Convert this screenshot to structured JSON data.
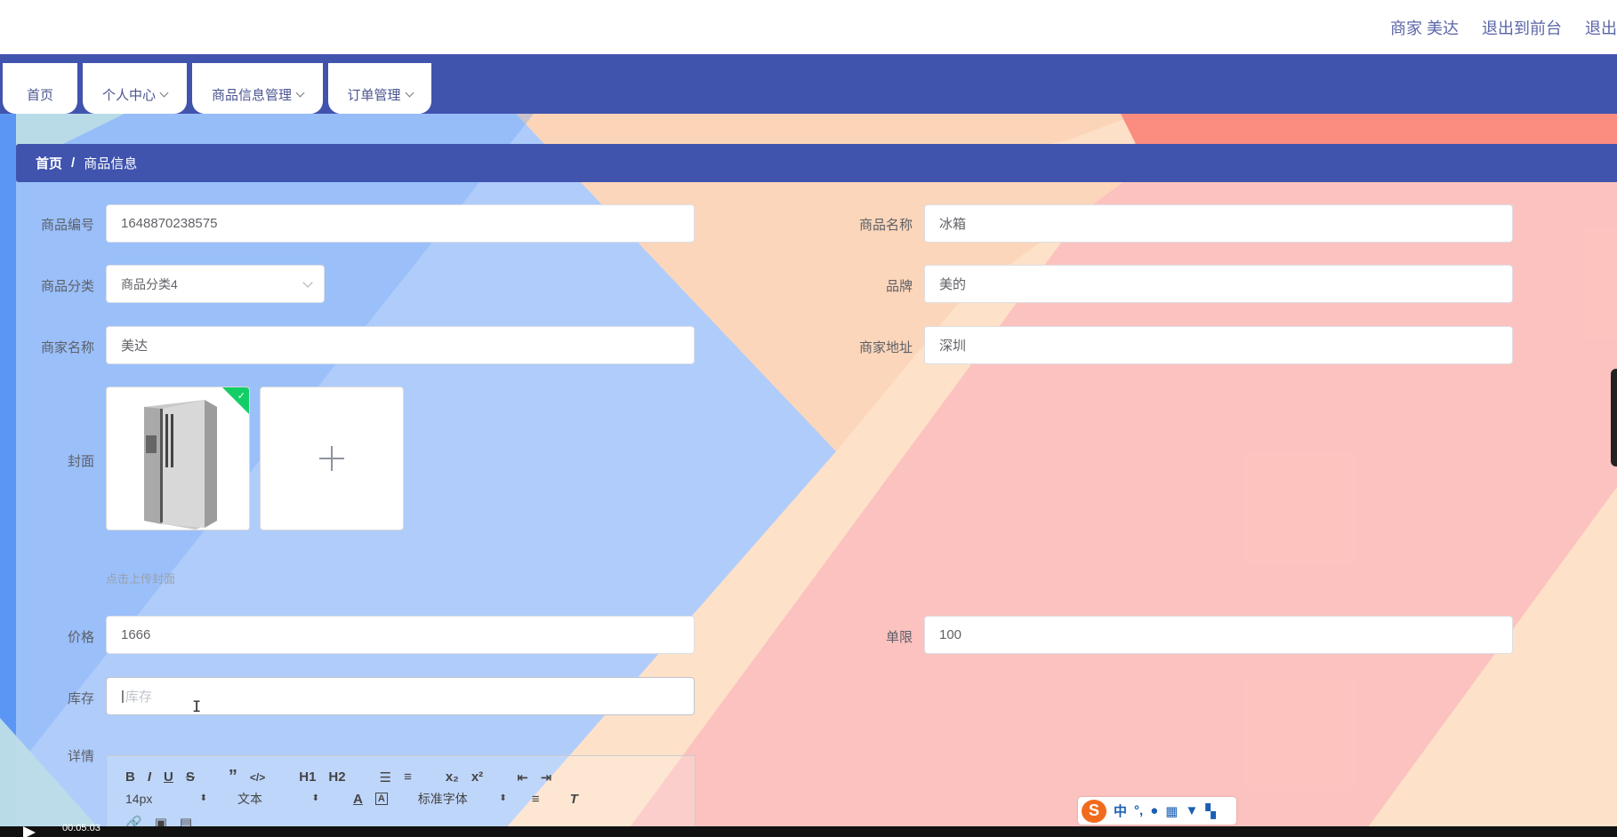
{
  "header": {
    "merchant": "商家 美达",
    "exit_front": "退出到前台",
    "logout": "退出"
  },
  "nav": {
    "tabs": [
      {
        "label": "首页"
      },
      {
        "label": "个人中心"
      },
      {
        "label": "商品信息管理"
      },
      {
        "label": "订单管理"
      }
    ]
  },
  "breadcrumb": {
    "home": "首页",
    "separator": "/",
    "current": "商品信息"
  },
  "form": {
    "product_no": {
      "label": "商品编号",
      "value": "1648870238575"
    },
    "product_name": {
      "label": "商品名称",
      "value": "冰箱"
    },
    "category": {
      "label": "商品分类",
      "value": "商品分类4"
    },
    "brand": {
      "label": "品牌",
      "value": "美的"
    },
    "merchant_name": {
      "label": "商家名称",
      "value": "美达"
    },
    "merchant_address": {
      "label": "商家地址",
      "value": "深圳"
    },
    "cover": {
      "label": "封面",
      "hint": "点击上传封面"
    },
    "price": {
      "label": "价格",
      "value": "1666"
    },
    "limit": {
      "label": "单限",
      "value": "100"
    },
    "stock": {
      "label": "库存",
      "placeholder": "库存"
    },
    "detail": {
      "label": "详情"
    }
  },
  "editor": {
    "font_size": "14px",
    "block_type": "文本",
    "font_family": "标准字体",
    "buttons_row1": [
      "B",
      "I",
      "U",
      "S",
      "”",
      "</>",
      "H1",
      "H2",
      "x₂",
      "x²"
    ]
  },
  "ime": {
    "logo": "S",
    "mode": "中",
    "punct": "°,"
  },
  "video": {
    "time": "00:05:03"
  },
  "colors": {
    "primary": "#4054ae",
    "success": "#13ce66",
    "bg_blue": "#aecbfb",
    "bg_peach": "#fde0c8",
    "bg_pink": "#fcc1bd"
  }
}
